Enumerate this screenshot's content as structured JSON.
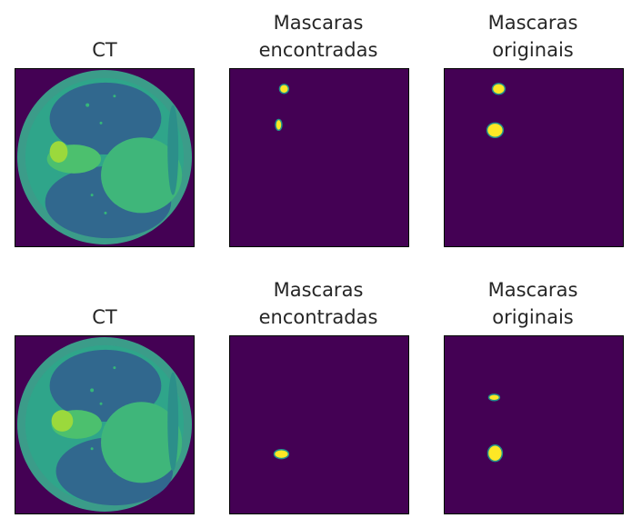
{
  "colors": {
    "background": "#440154",
    "mask_fill": "#fde725",
    "mask_edge": "#21918c",
    "lung_tissue": "#31688e",
    "soft_tissue": "#35b779",
    "body_ring": "#3b9c89"
  },
  "rows": [
    {
      "panels": [
        {
          "title": "CT"
        },
        {
          "title": "Mascaras\nencontradas"
        },
        {
          "title": "Mascaras\noriginais"
        }
      ]
    },
    {
      "panels": [
        {
          "title": "CT"
        },
        {
          "title": "Mascaras\nencontradas"
        },
        {
          "title": "Mascaras\noriginais"
        }
      ]
    }
  ]
}
